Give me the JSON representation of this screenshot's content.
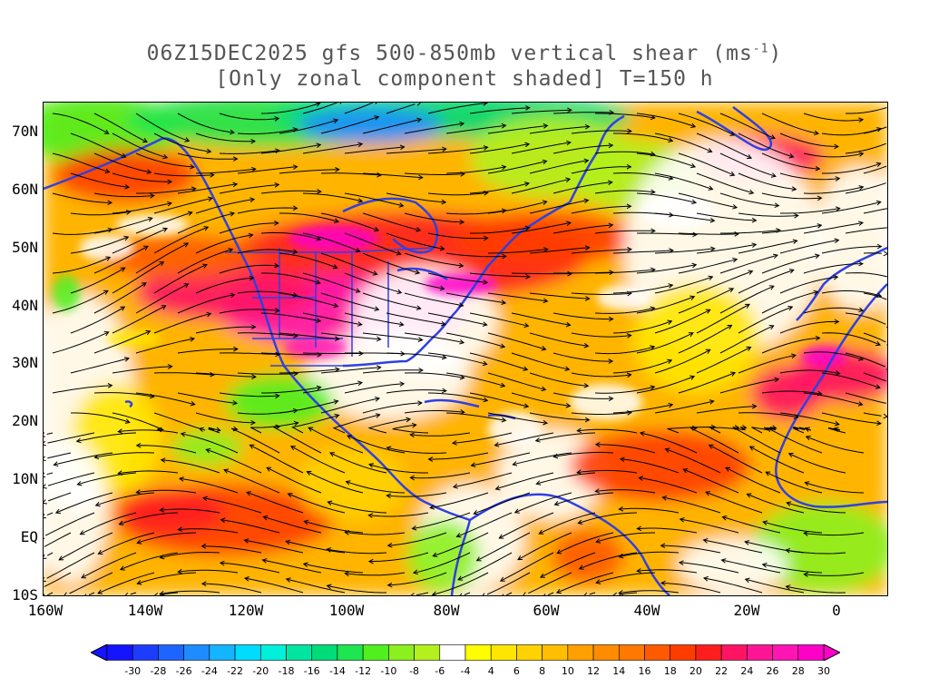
{
  "title": {
    "line1_pre": "06Z15DEC2025 gfs 500-850mb vertical shear (ms",
    "line1_sup": "-1",
    "line1_post": ")",
    "line2": "[Only zonal component shaded] T=150 h"
  },
  "axes": {
    "lat_labels": [
      "70N",
      "60N",
      "50N",
      "40N",
      "30N",
      "20N",
      "10N",
      "EQ",
      "10S"
    ],
    "lon_labels": [
      "160W",
      "140W",
      "120W",
      "100W",
      "80W",
      "60W",
      "40W",
      "20W",
      "0"
    ]
  },
  "colorbar": {
    "labels": [
      "-30",
      "-28",
      "-26",
      "-24",
      "-22",
      "-20",
      "-18",
      "-16",
      "-14",
      "-12",
      "-10",
      "-8",
      "-6",
      "-4",
      "4",
      "6",
      "8",
      "10",
      "12",
      "14",
      "16",
      "18",
      "20",
      "22",
      "24",
      "26",
      "28",
      "30"
    ],
    "colors": [
      "#1414ff",
      "#1e3cff",
      "#1e64ff",
      "#1e8cff",
      "#14b4ff",
      "#00dcff",
      "#00f0dc",
      "#00e6a0",
      "#00dc78",
      "#1ee650",
      "#50f01e",
      "#8cf01e",
      "#b4f01e",
      "#ffffff",
      "#ffff00",
      "#ffe600",
      "#ffd200",
      "#ffbe00",
      "#ffa000",
      "#ff8c00",
      "#ff7800",
      "#ff5a00",
      "#ff3c00",
      "#ff1e1e",
      "#ff1464",
      "#ff1496",
      "#ff14b4",
      "#ff00c8"
    ]
  },
  "colors": {
    "coast": "#3040e0",
    "streamline": "#000000",
    "frame": "#000000"
  }
}
